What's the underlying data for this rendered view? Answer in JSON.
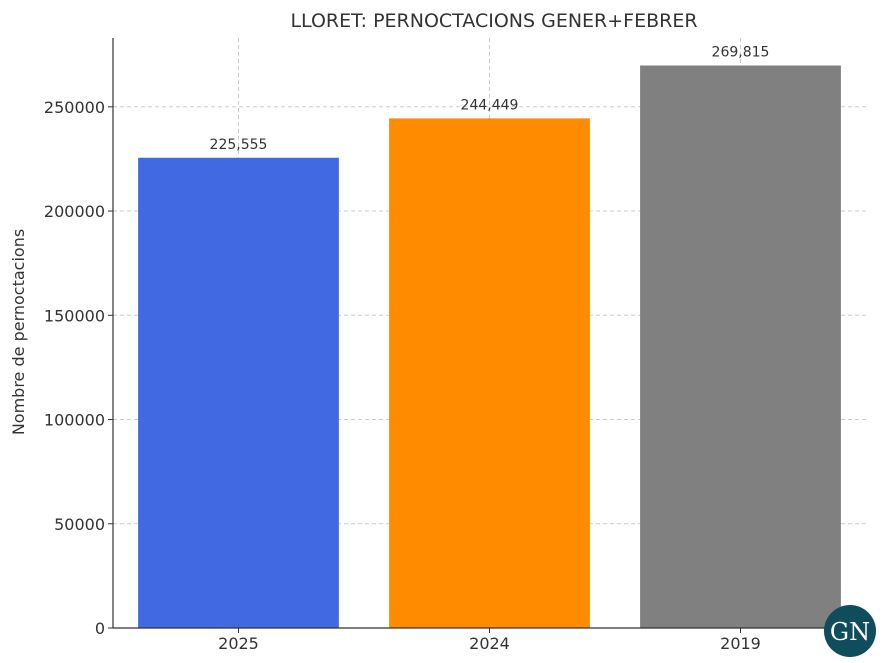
{
  "chart_data": {
    "type": "bar",
    "title": "LLORET: PERNOCTACIONS GENER+FEBRER",
    "xlabel": "",
    "ylabel": "Nombre de pernoctacions",
    "categories": [
      "2025",
      "2024",
      "2019"
    ],
    "values": [
      225555,
      244449,
      269815
    ],
    "value_labels": [
      "225,555",
      "244,449",
      "269,815"
    ],
    "colors": [
      "#4169e1",
      "#ff8c00",
      "#808080"
    ],
    "ylim": [
      0,
      283000
    ],
    "yticks": [
      0,
      50000,
      100000,
      150000,
      200000,
      250000
    ],
    "ytick_labels": [
      "0",
      "50000",
      "100000",
      "150000",
      "200000",
      "250000"
    ],
    "grid": true
  },
  "logo": {
    "text": "GN",
    "background_color": "#0f4c5c"
  }
}
